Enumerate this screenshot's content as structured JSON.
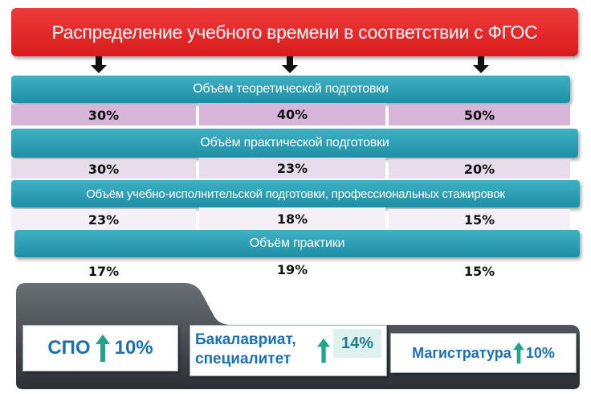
{
  "title": "Распределение учебного времени в соответствии с ФГОС",
  "sections": [
    {
      "label": "Объём теоретической подготовки",
      "values": [
        "30%",
        "40%",
        "50%"
      ]
    },
    {
      "label": "Объём практической подготовки",
      "values": [
        "30%",
        "23%",
        "20%"
      ]
    },
    {
      "label": "Объём учебно-исполнительской подготовки, профессиональных стажировок",
      "values": [
        "23%",
        "18%",
        "15%"
      ]
    },
    {
      "label": "Объём практики",
      "values": [
        "17%",
        "19%",
        "15%"
      ]
    }
  ],
  "levels": [
    {
      "name": "СПО",
      "increase": "10%"
    },
    {
      "name_line1": "Бакалавриат,",
      "name_line2": "специалитет",
      "increase": "14%"
    },
    {
      "name": "Магистратура",
      "increase": "10%"
    }
  ],
  "colors": {
    "title": "#e32626",
    "band": "#2ea0b6",
    "text_blue": "#1b6fb4",
    "arrow": "#1fa58a"
  }
}
